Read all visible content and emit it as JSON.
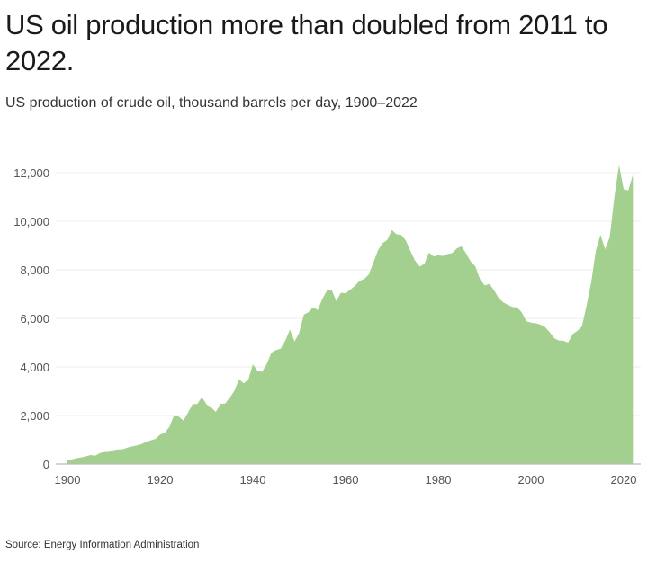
{
  "title": "US oil production more than doubled from 2011 to 2022.",
  "subtitle": "US production of crude oil, thousand barrels per day, 1900–2022",
  "source": "Source: Energy Information Administration",
  "chart_data": {
    "type": "area",
    "title": "US oil production more than doubled from 2011 to 2022.",
    "subtitle": "US production of crude oil, thousand barrels per day, 1900–2022",
    "xlabel": "",
    "ylabel": "",
    "xlim": [
      1900,
      2022
    ],
    "ylim": [
      0,
      12000
    ],
    "grid": true,
    "fill_color": "#a3d08e",
    "x_ticks": [
      1900,
      1920,
      1940,
      1960,
      1980,
      2000,
      2020
    ],
    "x_tick_labels": [
      "1900",
      "1920",
      "1940",
      "1960",
      "1980",
      "2000",
      "2020"
    ],
    "y_ticks": [
      0,
      2000,
      4000,
      6000,
      8000,
      10000,
      12000
    ],
    "y_tick_labels": [
      "0",
      "2,000",
      "4,000",
      "6,000",
      "8,000",
      "10,000",
      "12,000"
    ],
    "x_start": 1900,
    "values": [
      174,
      190,
      243,
      275,
      320,
      369,
      346,
      456,
      489,
      502,
      574,
      604,
      611,
      683,
      726,
      770,
      824,
      918,
      976,
      1037,
      1214,
      1294,
      1533,
      2007,
      1961,
      1794,
      2113,
      2469,
      2474,
      2760,
      2460,
      2332,
      2145,
      2481,
      2487,
      2730,
      3007,
      3500,
      3327,
      3466,
      4107,
      3842,
      3796,
      4125,
      4584,
      4695,
      4751,
      5088,
      5535,
      5046,
      5407,
      6158,
      6256,
      6458,
      6342,
      6807,
      7151,
      7170,
      6710,
      7054,
      7035,
      7183,
      7332,
      7542,
      7614,
      7804,
      8295,
      8810,
      9096,
      9238,
      9637,
      9463,
      9441,
      9208,
      8774,
      8375,
      8132,
      8245,
      8707,
      8552,
      8597,
      8572,
      8649,
      8688,
      8879,
      8971,
      8680,
      8349,
      8140,
      7613,
      7355,
      7417,
      7171,
      6847,
      6662,
      6560,
      6465,
      6452,
      6252,
      5881,
      5822,
      5801,
      5744,
      5649,
      5441,
      5184,
      5088,
      5077,
      5000,
      5353,
      5482,
      5671,
      6521,
      7494,
      8789,
      9446,
      8842,
      9352,
      10991,
      12315,
      11318,
      11268,
      11911
    ]
  }
}
